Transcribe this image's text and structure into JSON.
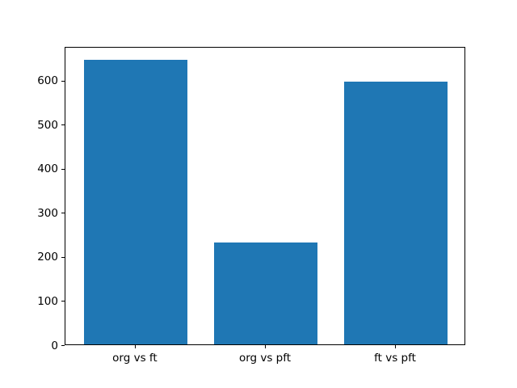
{
  "figure": {
    "background": "#ffffff"
  },
  "chart_data": {
    "type": "bar",
    "title": "",
    "xlabel": "",
    "ylabel": "",
    "categories": [
      "org vs ft",
      "org vs pft",
      "ft vs pft"
    ],
    "values": [
      645,
      232,
      596
    ],
    "bar_color": "#1f77b4",
    "ylim": [
      0,
      677
    ],
    "yticks": [
      0,
      100,
      200,
      300,
      400,
      500,
      600
    ],
    "grid": false,
    "legend_position": "none"
  }
}
